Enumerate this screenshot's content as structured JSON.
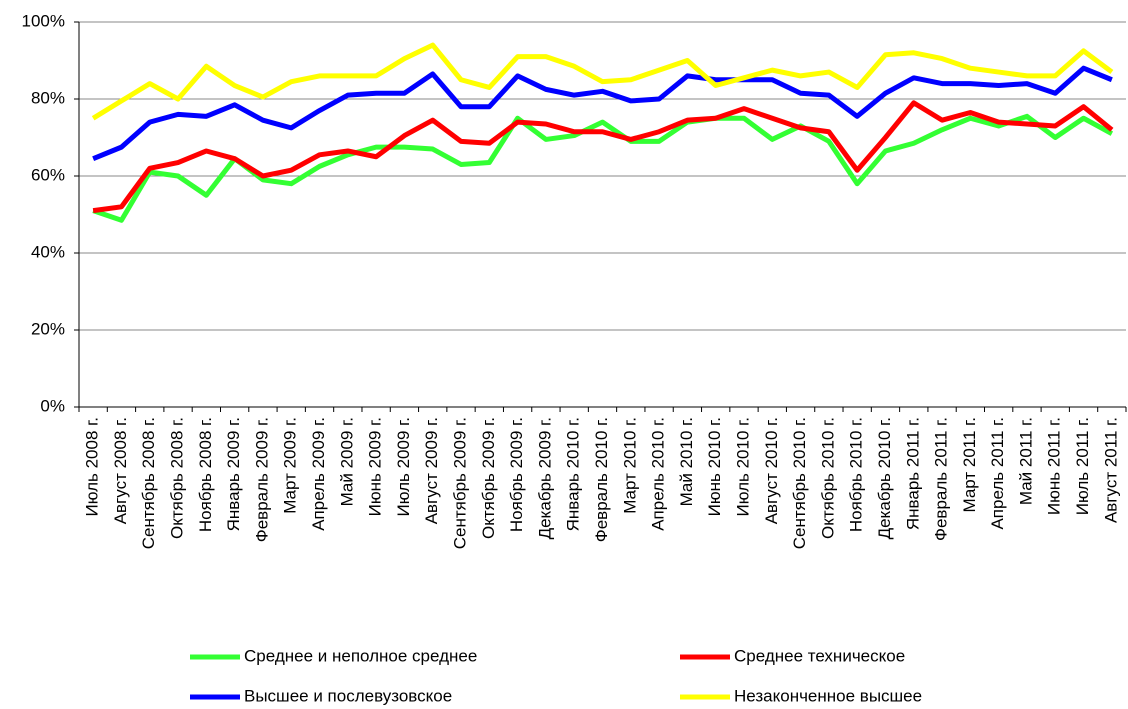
{
  "chart_data": {
    "type": "line",
    "categories": [
      "Июль 2008 г.",
      "Август 2008 г.",
      "Сентябрь 2008 г.",
      "Октябрь 2008 г.",
      "Ноябрь 2008 г.",
      "Январь 2009 г.",
      "Февраль 2009 г.",
      "Март 2009 г.",
      "Апрель 2009 г.",
      "Май 2009 г.",
      "Июнь 2009 г.",
      "Июль 2009 г.",
      "Август 2009 г.",
      "Сентябрь 2009 г.",
      "Октябрь 2009 г.",
      "Ноябрь 2009 г.",
      "Декабрь 2009 г.",
      "Январь 2010 г.",
      "Февраль 2010 г.",
      "Март 2010 г.",
      "Апрель 2010 г.",
      "Май 2010 г.",
      "Июнь 2010 г.",
      "Июль 2010 г.",
      "Август 2010 г.",
      "Сентябрь 2010 г.",
      "Октябрь 2010 г.",
      "Ноябрь 2010 г.",
      "Декабрь 2010 г.",
      "Январь 2011 г.",
      "Февраль 2011 г.",
      "Март 2011 г.",
      "Апрель 2011 г.",
      "Май 2011 г.",
      "Июнь 2011 г.",
      "Июль 2011 г.",
      "Август 2011 г."
    ],
    "series": [
      {
        "name": "Среднее и неполное среднее",
        "color": "#33ff33",
        "values": [
          51,
          48.5,
          61,
          60,
          55,
          64.5,
          59,
          58,
          62.5,
          65.5,
          67.5,
          67.5,
          67,
          63,
          63.5,
          75,
          69.5,
          70.5,
          74,
          69,
          69,
          74,
          75,
          75,
          69.5,
          73,
          69,
          58,
          66.5,
          68.5,
          72,
          75,
          73,
          75.5,
          70,
          75,
          71
        ]
      },
      {
        "name": "Среднее техническое",
        "color": "#ff0000",
        "values": [
          51,
          52,
          62,
          63.5,
          66.5,
          64.5,
          60,
          61.5,
          65.5,
          66.5,
          65,
          70.5,
          74.5,
          69,
          68.5,
          74,
          73.5,
          71.5,
          71.5,
          69.5,
          71.5,
          74.5,
          75,
          77.5,
          75,
          72.5,
          71.5,
          61.5,
          70,
          79,
          74.5,
          76.5,
          74,
          73.5,
          73,
          78,
          72
        ]
      },
      {
        "name": "Высшее и послевузовское",
        "color": "#0000ff",
        "values": [
          64.5,
          67.5,
          74,
          76,
          75.5,
          78.5,
          74.5,
          72.5,
          77,
          81,
          81.5,
          81.5,
          86.5,
          78,
          78,
          86,
          82.5,
          81,
          82,
          79.5,
          80,
          86,
          85,
          85,
          85,
          81.5,
          81,
          75.5,
          81.5,
          85.5,
          84,
          84,
          83.5,
          84,
          81.5,
          88,
          85
        ]
      },
      {
        "name": "Незаконченное высшее",
        "color": "#ffff00",
        "values": [
          75,
          79.5,
          84,
          80,
          88.5,
          83.5,
          80.5,
          84.5,
          86,
          86,
          86,
          90.5,
          94,
          85,
          83,
          91,
          91,
          88.5,
          84.5,
          85,
          87.5,
          90,
          83.5,
          85.5,
          87.5,
          86,
          87,
          83,
          91.5,
          92,
          90.5,
          88,
          87,
          86,
          86,
          92.5,
          87
        ]
      }
    ],
    "ylim": [
      0,
      100
    ],
    "yticks": [
      {
        "value": 0,
        "label": "0%"
      },
      {
        "value": 20,
        "label": "20%"
      },
      {
        "value": 40,
        "label": "40%"
      },
      {
        "value": 60,
        "label": "60%"
      },
      {
        "value": 80,
        "label": "80%"
      },
      {
        "value": 100,
        "label": "100%"
      }
    ],
    "grid": true,
    "legend": "bottom"
  }
}
